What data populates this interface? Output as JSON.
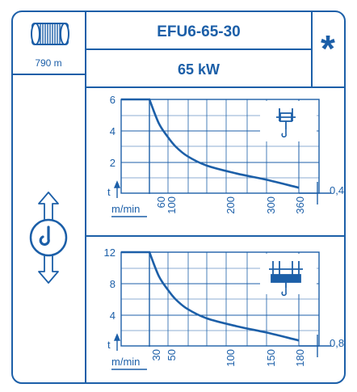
{
  "header": {
    "model": "EFU6-65-30",
    "power": "65 kW",
    "star": "*",
    "rope_length": "790 m"
  },
  "icons": {
    "rope_drum": "rope-drum-icon",
    "hook_direction": "hook-up-down-arrows-icon",
    "single_hoist": "single-trolley-hoist-icon",
    "double_hoist": "double-trolley-hoist-icon"
  },
  "colors": {
    "accent": "#1c5fa8",
    "background": "#ffffff"
  },
  "chart_data": [
    {
      "type": "line",
      "xlabel": "m/min",
      "ylabel": "t",
      "x_ticks": [
        "60",
        "100",
        "200",
        "300",
        "360"
      ],
      "y_ticks": [
        "6",
        "4",
        "2"
      ],
      "end_value_label": "0,4",
      "ylim": [
        0,
        6
      ],
      "x": [
        0,
        60,
        80,
        100,
        120,
        150,
        200,
        250,
        300,
        360
      ],
      "y": [
        6,
        6,
        4.5,
        3.6,
        3.0,
        2.4,
        1.8,
        1.3,
        0.9,
        0.4
      ]
    },
    {
      "type": "line",
      "xlabel": "m/min",
      "ylabel": "t",
      "x_ticks": [
        "30",
        "50",
        "100",
        "150",
        "180"
      ],
      "y_ticks": [
        "12",
        "8",
        "4"
      ],
      "end_value_label": "0,8",
      "ylim": [
        0,
        12
      ],
      "x": [
        0,
        30,
        40,
        50,
        60,
        75,
        100,
        125,
        150,
        180
      ],
      "y": [
        12,
        12,
        9,
        7.2,
        6,
        4.8,
        3.6,
        2.6,
        1.8,
        0.8
      ]
    }
  ]
}
